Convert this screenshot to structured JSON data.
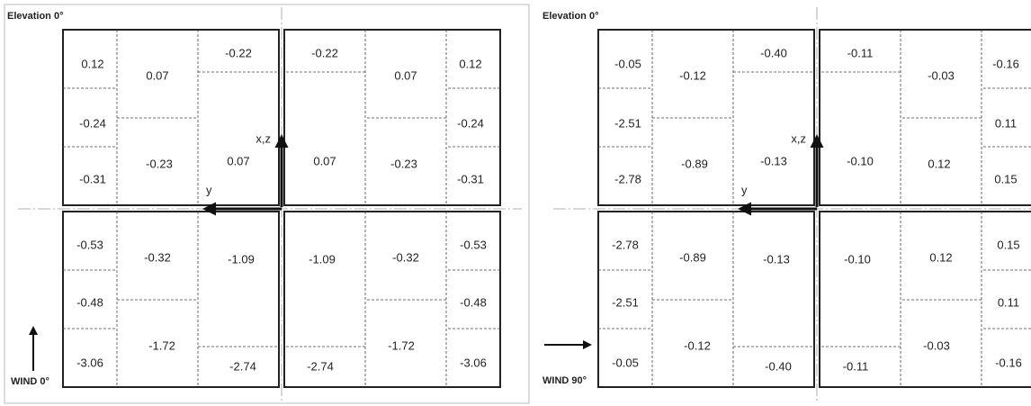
{
  "panels": [
    {
      "title": "Elevation 0°",
      "wind": "WIND 0°",
      "axis_up": "x,z",
      "axis_left": "y",
      "quadrants": [
        [
          "0.12",
          "0.07",
          "-0.22",
          "-0.24",
          "-0.23",
          "0.07",
          "-0.31"
        ],
        [
          "0.12",
          "0.07",
          "-0.22",
          "-0.24",
          "-0.23",
          "0.07",
          "-0.31"
        ],
        [
          "-0.53",
          "-0.32",
          "-1.09",
          "-0.48",
          "-1.72",
          "-3.06",
          "-2.74"
        ],
        [
          "-0.53",
          "-0.32",
          "-1.09",
          "-0.48",
          "-1.72",
          "-3.06",
          "-2.74"
        ]
      ]
    },
    {
      "title": "Elevation 0°",
      "wind": "WIND 90°",
      "axis_up": "x,z",
      "axis_left": "y",
      "quadrants": [
        [
          "-0.05",
          "-0.12",
          "-0.40",
          "-2.51",
          "-0.89",
          "-0.13",
          "-2.78"
        ],
        [
          "-0.16",
          "-0.03",
          "-0.11",
          "0.11",
          "0.12",
          "-0.10",
          "0.15"
        ],
        [
          "-2.78",
          "-0.89",
          "-0.13",
          "-2.51",
          "-0.12",
          "-0.05",
          "-0.40"
        ],
        [
          "0.15",
          "0.12",
          "-0.10",
          "0.11",
          "-0.03",
          "-0.16",
          "-0.11"
        ]
      ]
    }
  ]
}
